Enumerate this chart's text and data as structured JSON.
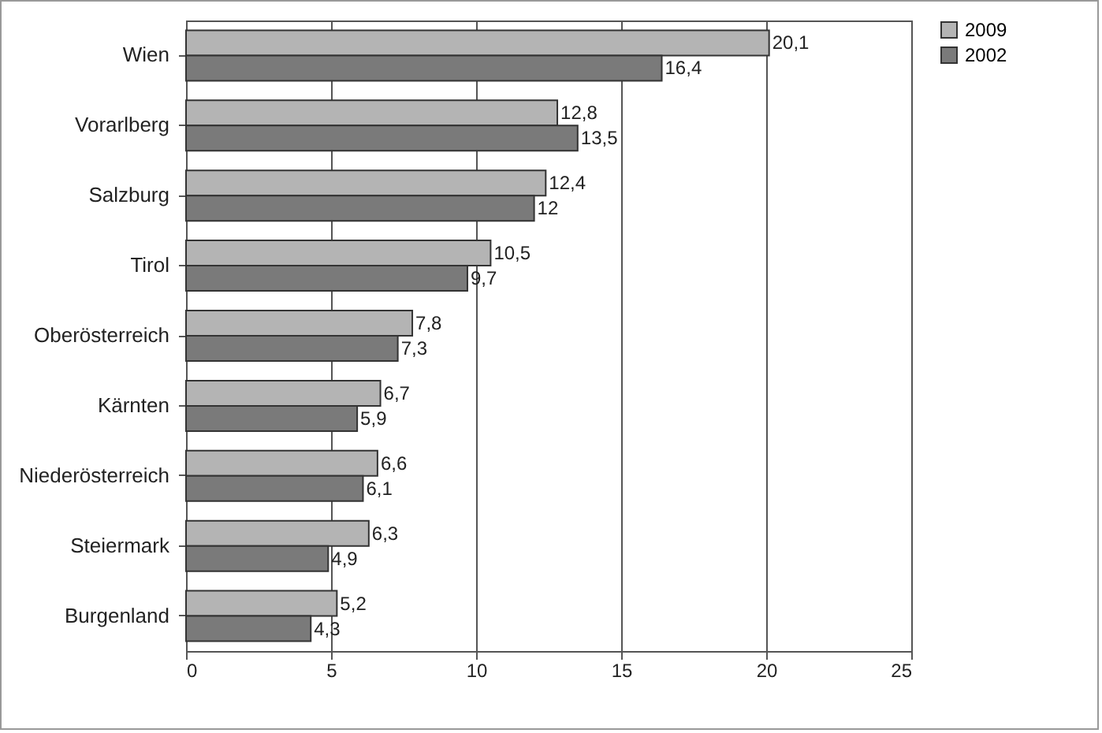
{
  "chart_data": {
    "type": "bar",
    "orientation": "horizontal",
    "categories": [
      "Wien",
      "Vorarlberg",
      "Salzburg",
      "Tirol",
      "Oberösterreich",
      "Kärnten",
      "Niederösterreich",
      "Steiermark",
      "Burgenland"
    ],
    "series": [
      {
        "name": "2009",
        "color": "#b4b4b4",
        "values": [
          20.1,
          12.8,
          12.4,
          10.5,
          7.8,
          6.7,
          6.6,
          6.3,
          5.2
        ],
        "value_labels": [
          "20,1",
          "12,8",
          "12,4",
          "10,5",
          "7,8",
          "6,7",
          "6,6",
          "6,3",
          "5,2"
        ]
      },
      {
        "name": "2002",
        "color": "#7a7a7a",
        "values": [
          16.4,
          13.5,
          12,
          9.7,
          7.3,
          5.9,
          6.1,
          4.9,
          4.3
        ],
        "value_labels": [
          "16,4",
          "13,5",
          "12",
          "9,7",
          "7,3",
          "5,9",
          "6,1",
          "4,9",
          "4,3"
        ]
      }
    ],
    "xlim": [
      0,
      25
    ],
    "xticks": [
      0,
      5,
      10,
      15,
      20,
      25
    ],
    "grid": "x",
    "legend": "right"
  }
}
